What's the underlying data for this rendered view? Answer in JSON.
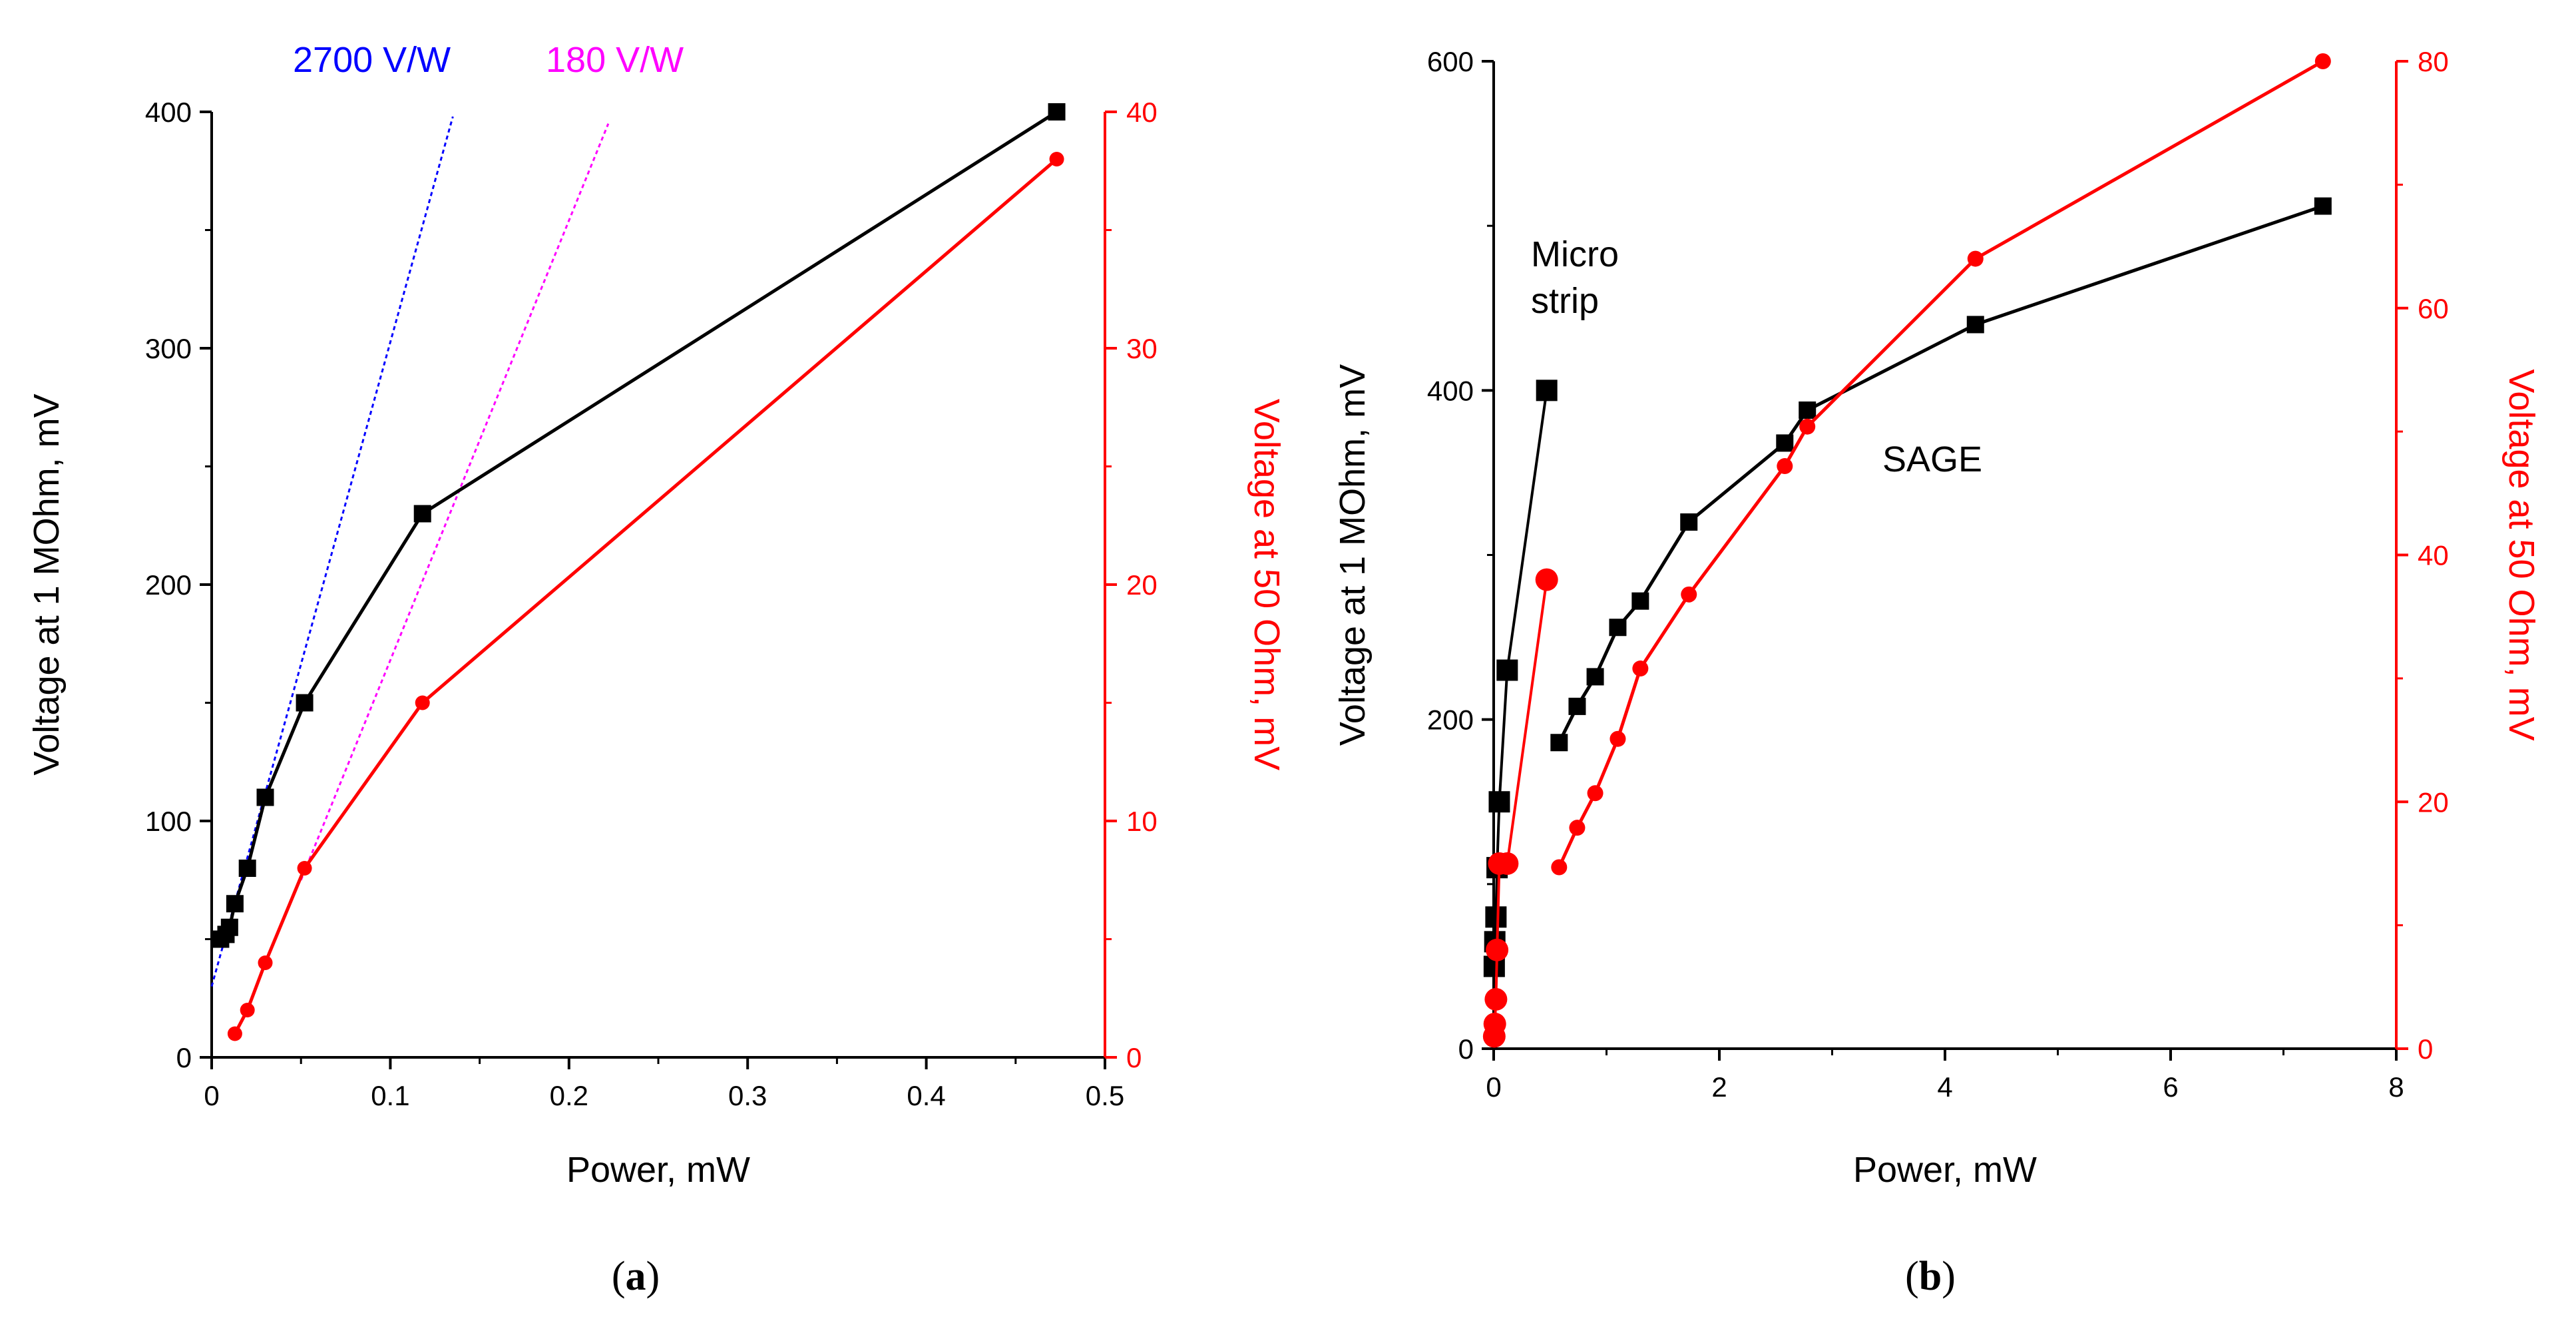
{
  "colors": {
    "left_axis": "#000000",
    "right_axis": "#ff0000",
    "series_black": "#000000",
    "series_red": "#ff0000",
    "fit_blue": "#0000ff",
    "fit_magenta": "#ff00ff"
  },
  "chart_data": [
    {
      "type": "line",
      "panel_label": "(a)",
      "xlabel": "Power, mW",
      "ylabel": "Voltage at 1 MOhm, mV",
      "ylabel_right": "Voltage at 50 Ohm, mV",
      "xlim": [
        0,
        0.5
      ],
      "ylim": [
        0,
        400
      ],
      "ylim_right": [
        0,
        40
      ],
      "xticks": [
        "0",
        "0.1",
        "0.2",
        "0.3",
        "0.4",
        "0.5"
      ],
      "yticks": [
        "0",
        "100",
        "200",
        "300",
        "400"
      ],
      "yticks_right": [
        "0",
        "10",
        "20",
        "30",
        "40"
      ],
      "grid": false,
      "series": [
        {
          "axis": "left",
          "marker": "square",
          "color": "#000000",
          "x": [
            0.005,
            0.008,
            0.01,
            0.013,
            0.02,
            0.03,
            0.052,
            0.118,
            0.473
          ],
          "y": [
            50,
            52,
            55,
            65,
            80,
            110,
            150,
            230,
            400
          ]
        },
        {
          "axis": "right",
          "marker": "circle",
          "color": "#ff0000",
          "x": [
            0.013,
            0.02,
            0.03,
            0.052,
            0.118,
            0.473
          ],
          "y": [
            1,
            2,
            4,
            8,
            15,
            38
          ]
        }
      ],
      "fit_lines": [
        {
          "label": "2700 V/W",
          "color": "#0000ff",
          "x": [
            0,
            0.135
          ],
          "y": [
            30,
            398
          ]
        },
        {
          "label": "180 V/W",
          "color": "#ff00ff",
          "x": [
            0.05,
            0.222
          ],
          "y": [
            75,
            395
          ]
        }
      ]
    },
    {
      "type": "line",
      "panel_label": "(b)",
      "xlabel": "Power, mW",
      "ylabel": "Voltage at 1 MOhm, mV",
      "ylabel_right": "Voltage at 50 Ohm, mV",
      "xlim": [
        0,
        8
      ],
      "ylim": [
        0,
        600
      ],
      "ylim_right": [
        0,
        80
      ],
      "xticks": [
        "0",
        "2",
        "4",
        "6",
        "8"
      ],
      "yticks": [
        "0",
        "200",
        "400",
        "600"
      ],
      "yticks_right": [
        "0",
        "20",
        "40",
        "60",
        "80"
      ],
      "grid": false,
      "annotations": [
        "Micro",
        "strip",
        "SAGE"
      ],
      "series": [
        {
          "axis": "left",
          "marker": "square",
          "color": "#000000",
          "size": "large",
          "x": [
            0.005,
            0.01,
            0.02,
            0.03,
            0.05,
            0.12,
            0.47
          ],
          "y": [
            50,
            65,
            80,
            110,
            150,
            230,
            400
          ]
        },
        {
          "axis": "right",
          "marker": "circle",
          "color": "#ff0000",
          "size": "large",
          "x": [
            0.005,
            0.01,
            0.02,
            0.03,
            0.05,
            0.12,
            0.47
          ],
          "y": [
            1,
            2,
            4,
            8,
            15,
            15,
            38
          ]
        },
        {
          "axis": "left",
          "marker": "square",
          "color": "#000000",
          "size": "small",
          "x": [
            0.58,
            0.74,
            0.9,
            1.1,
            1.3,
            1.73,
            2.58,
            2.78,
            4.27,
            7.35
          ],
          "y": [
            186,
            208,
            226,
            256,
            272,
            320,
            368,
            388,
            440,
            512
          ]
        },
        {
          "axis": "right",
          "marker": "circle",
          "color": "#ff0000",
          "size": "small",
          "x": [
            0.58,
            0.74,
            0.9,
            1.1,
            1.3,
            1.73,
            2.58,
            2.78,
            4.27,
            7.35
          ],
          "y": [
            14.7,
            17.9,
            20.7,
            25.1,
            30.8,
            36.8,
            47.2,
            50.4,
            64,
            80
          ]
        }
      ]
    }
  ]
}
